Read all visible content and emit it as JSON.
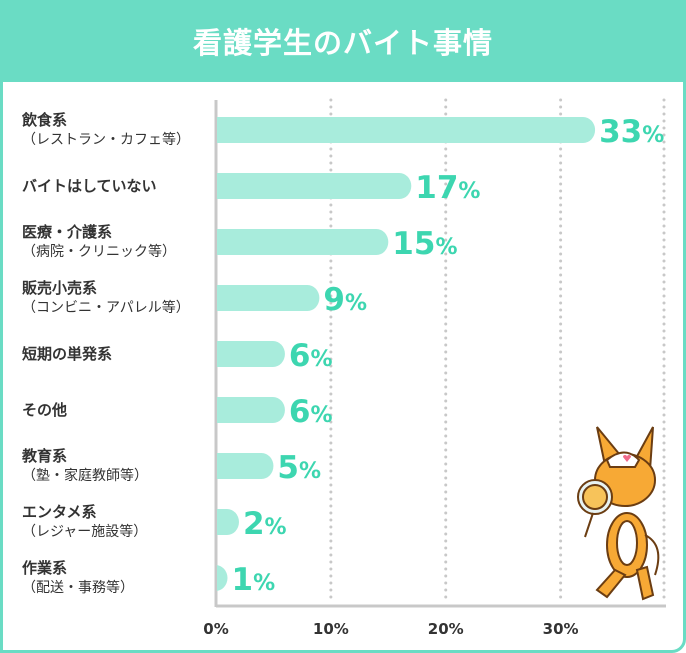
{
  "chart_data": {
    "type": "bar",
    "orientation": "horizontal",
    "title": "看護学生のバイト事情",
    "categories": [
      {
        "label": "飲食系",
        "sub": "（レストラン・カフェ等）"
      },
      {
        "label": "バイトはしていない",
        "sub": ""
      },
      {
        "label": "医療・介護系",
        "sub": "（病院・クリニック等）"
      },
      {
        "label": "販売小売系",
        "sub": "（コンビニ・アパレル等）"
      },
      {
        "label": "短期の単発系",
        "sub": ""
      },
      {
        "label": "その他",
        "sub": ""
      },
      {
        "label": "教育系",
        "sub": "（塾・家庭教師等）"
      },
      {
        "label": "エンタメ系",
        "sub": "（レジャー施設等）"
      },
      {
        "label": "作業系",
        "sub": "（配送・事務等）"
      }
    ],
    "values": [
      33,
      17,
      15,
      9,
      6,
      6,
      5,
      2,
      1
    ],
    "data_labels": [
      "33%",
      "17%",
      "15%",
      "9%",
      "6%",
      "6%",
      "5%",
      "2%",
      "1%"
    ],
    "xticks": [
      "0%",
      "10%",
      "20%",
      "30%"
    ],
    "xlim": [
      0,
      39
    ],
    "grid": "vertical dotted",
    "colors": {
      "frame": "#6adcc4",
      "bar": "#a8ecdc",
      "label": "#3dd6b0",
      "axis": "#c8c8c8"
    }
  }
}
